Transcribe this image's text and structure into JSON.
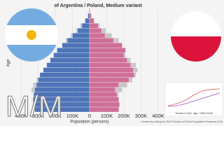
{
  "chart_data": [
    {
      "type": "pyramid",
      "title": "of Argentina / Poland, Medium variant",
      "xlabel": "Population (persons)",
      "ylabel": "Age",
      "categories": [
        null,
        null,
        null,
        null,
        null,
        null,
        null,
        null,
        null,
        null,
        null,
        null,
        null,
        null,
        null,
        null,
        null,
        null,
        null,
        null,
        null
      ],
      "series": [
        {
          "side": "left",
          "color": "#c8c8c8",
          "values": [
            270000,
            290000,
            310000,
            330000,
            340000,
            330000,
            310000,
            290000,
            260000,
            240000,
            220000,
            200000,
            180000,
            160000,
            140000,
            110000,
            80000,
            55000,
            30000,
            12000,
            4000
          ]
        },
        {
          "side": "right",
          "color": "#c8c8c8",
          "values": [
            140000,
            150000,
            160000,
            170000,
            190000,
            220000,
            250000,
            270000,
            280000,
            270000,
            240000,
            210000,
            200000,
            190000,
            170000,
            130000,
            95000,
            60000,
            30000,
            12000,
            4000
          ]
        },
        {
          "side": "left",
          "color": "#4d74b8",
          "values": [
            320000,
            330000,
            330000,
            325000,
            320000,
            310000,
            300000,
            290000,
            270000,
            250000,
            230000,
            210000,
            190000,
            160000,
            130000,
            100000,
            70000,
            45000,
            25000,
            10000,
            3000
          ]
        },
        {
          "side": "right",
          "color": "#cf6f98",
          "values": [
            170000,
            175000,
            170000,
            160000,
            150000,
            170000,
            230000,
            260000,
            255000,
            240000,
            220000,
            200000,
            210000,
            190000,
            140000,
            90000,
            70000,
            50000,
            25000,
            10000,
            3000
          ]
        }
      ],
      "xlim": [
        0,
        400000
      ],
      "xticks": [
        0,
        {
          "value": 100000,
          "label": "100K"
        },
        {
          "value": 200000,
          "label": "200K"
        },
        {
          "value": 300000,
          "label": "300K"
        },
        {
          "value": 400000,
          "label": "400K"
        }
      ]
    },
    {
      "type": "line",
      "title": "Trends in live. age, 1950-2100",
      "x": [
        1950,
        1975,
        2000,
        2025,
        2050,
        2075,
        2100
      ],
      "series": [
        {
          "color": "#9a4fc0",
          "values": [
            24,
            25,
            28,
            32,
            36,
            40,
            44
          ]
        },
        {
          "color": "#d65a5a",
          "values": [
            25,
            28,
            33,
            41,
            47,
            49,
            50
          ]
        }
      ],
      "xlim": [
        1950,
        2100
      ],
      "ylim": [
        20,
        55
      ]
    }
  ],
  "credit": "Created by editing the 2022 Revision of World Population Prospects (UN)",
  "overlay_text": "M/M"
}
